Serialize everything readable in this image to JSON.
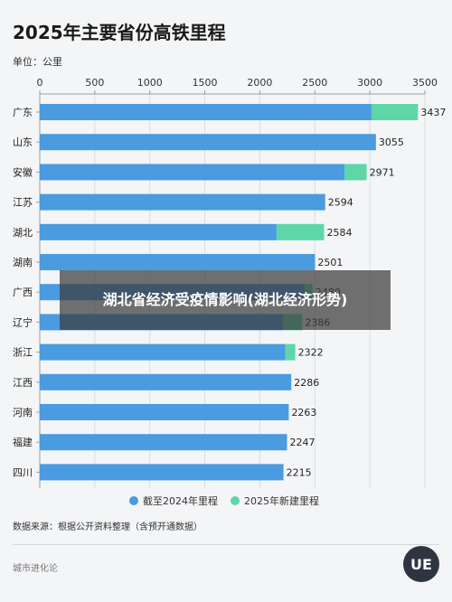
{
  "header": {
    "title": "2025年主要省份高铁里程",
    "unit": "单位：公里"
  },
  "chart_data": {
    "type": "bar",
    "orientation": "horizontal",
    "stacked": true,
    "categories": [
      "广东",
      "山东",
      "安徽",
      "江苏",
      "湖北",
      "湖南",
      "广西",
      "辽宁",
      "浙江",
      "江西",
      "河南",
      "福建",
      "四川"
    ],
    "series": [
      {
        "name": "截至2024年里程",
        "color": "#4a9be0",
        "values": [
          3015,
          3055,
          2771,
          2594,
          2152,
          2501,
          2410,
          2210,
          2232,
          2286,
          2263,
          2247,
          2215
        ]
      },
      {
        "name": "2025年新建里程",
        "color": "#5fd6a8",
        "values": [
          422,
          0,
          200,
          0,
          432,
          0,
          70,
          176,
          90,
          0,
          0,
          0,
          0
        ]
      }
    ],
    "totals": [
      "3437",
      "3055",
      "2971",
      "2594",
      "2584",
      "2501",
      "2480",
      "2386",
      "2322",
      "2286",
      "2263",
      "2247",
      "2215"
    ],
    "xlim": [
      0,
      3500
    ],
    "xticks": [
      "0",
      "500",
      "1000",
      "1500",
      "2000",
      "2500",
      "3000",
      "3500"
    ],
    "grid": true,
    "legend_position": "bottom"
  },
  "footer": {
    "source": "数据来源：根据公开资料整理（含预开通数据）",
    "brand": "城市进化论",
    "logo_text": "UE"
  },
  "overlay": {
    "headline": "湖北省经济受疫情影响(湖北经济形势)"
  }
}
